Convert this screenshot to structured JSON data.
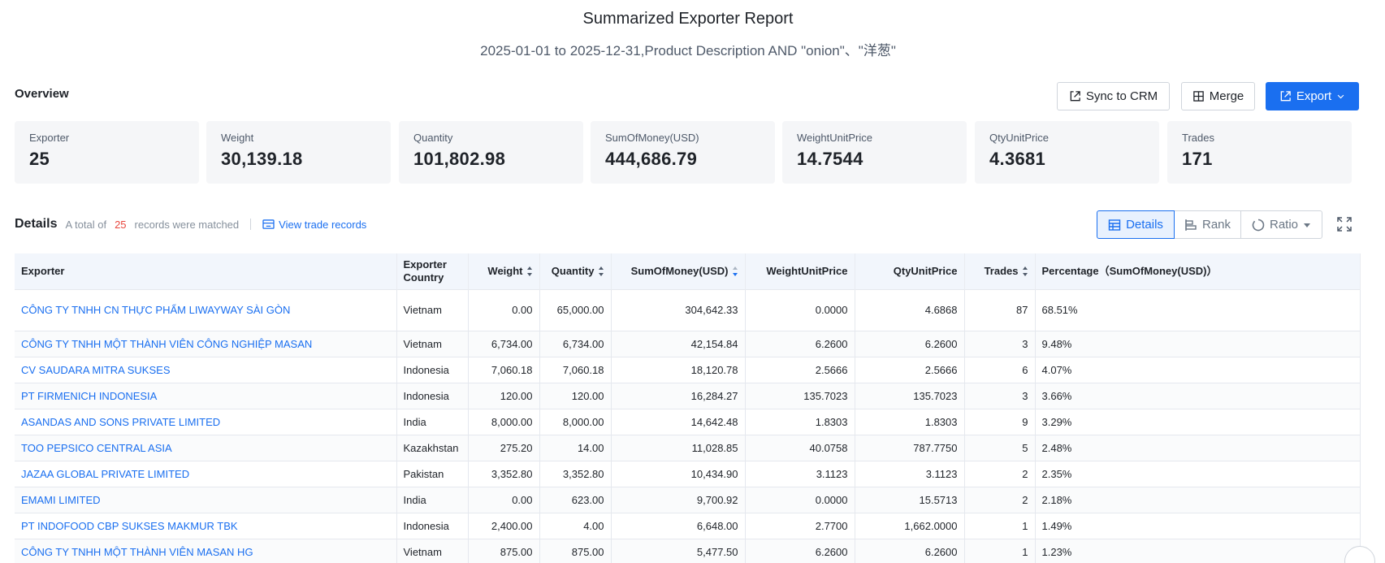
{
  "report": {
    "title": "Summarized Exporter Report",
    "subtitle": "2025-01-01 to 2025-12-31,Product Description AND \"onion\"、\"洋葱\""
  },
  "overview": {
    "label": "Overview",
    "buttons": {
      "sync": "Sync to CRM",
      "merge": "Merge",
      "export": "Export"
    },
    "stats": [
      {
        "label": "Exporter",
        "value": "25"
      },
      {
        "label": "Weight",
        "value": "30,139.18"
      },
      {
        "label": "Quantity",
        "value": "101,802.98"
      },
      {
        "label": "SumOfMoney(USD)",
        "value": "444,686.79"
      },
      {
        "label": "WeightUnitPrice",
        "value": "14.7544"
      },
      {
        "label": "QtyUnitPrice",
        "value": "4.3681"
      },
      {
        "label": "Trades",
        "value": "171"
      }
    ]
  },
  "details": {
    "title": "Details",
    "count_prefix": "A total of",
    "count": "25",
    "count_suffix": "records were matched",
    "view_link": "View trade records",
    "views": {
      "details": "Details",
      "rank": "Rank",
      "ratio": "Ratio"
    }
  },
  "table": {
    "headers": {
      "exporter": "Exporter",
      "country": "Exporter Country",
      "weight": "Weight",
      "quantity": "Quantity",
      "sum": "SumOfMoney(USD)",
      "wup": "WeightUnitPrice",
      "qup": "QtyUnitPrice",
      "trades": "Trades",
      "pct": "Percentage（SumOfMoney(USD)）"
    },
    "rows": [
      {
        "exporter": "CÔNG TY TNHH CN THỰC PHẨM LIWAYWAY SÀI GÒN",
        "country": "Vietnam",
        "weight": "0.00",
        "quantity": "65,000.00",
        "sum": "304,642.33",
        "wup": "0.0000",
        "qup": "4.6868",
        "trades": "87",
        "pct": "68.51%"
      },
      {
        "exporter": "CÔNG TY TNHH MỘT THÀNH VIÊN CÔNG NGHIỆP MASAN",
        "country": "Vietnam",
        "weight": "6,734.00",
        "quantity": "6,734.00",
        "sum": "42,154.84",
        "wup": "6.2600",
        "qup": "6.2600",
        "trades": "3",
        "pct": "9.48%"
      },
      {
        "exporter": "CV SAUDARA MITRA SUKSES",
        "country": "Indonesia",
        "weight": "7,060.18",
        "quantity": "7,060.18",
        "sum": "18,120.78",
        "wup": "2.5666",
        "qup": "2.5666",
        "trades": "6",
        "pct": "4.07%"
      },
      {
        "exporter": "PT FIRMENICH INDONESIA",
        "country": "Indonesia",
        "weight": "120.00",
        "quantity": "120.00",
        "sum": "16,284.27",
        "wup": "135.7023",
        "qup": "135.7023",
        "trades": "3",
        "pct": "3.66%"
      },
      {
        "exporter": "ASANDAS AND SONS PRIVATE LIMITED",
        "country": "India",
        "weight": "8,000.00",
        "quantity": "8,000.00",
        "sum": "14,642.48",
        "wup": "1.8303",
        "qup": "1.8303",
        "trades": "9",
        "pct": "3.29%"
      },
      {
        "exporter": "TOO PEPSICO CENTRAL ASIA",
        "country": "Kazakhstan",
        "weight": "275.20",
        "quantity": "14.00",
        "sum": "11,028.85",
        "wup": "40.0758",
        "qup": "787.7750",
        "trades": "5",
        "pct": "2.48%"
      },
      {
        "exporter": "JAZAA GLOBAL PRIVATE LIMITED",
        "country": "Pakistan",
        "weight": "3,352.80",
        "quantity": "3,352.80",
        "sum": "10,434.90",
        "wup": "3.1123",
        "qup": "3.1123",
        "trades": "2",
        "pct": "2.35%"
      },
      {
        "exporter": "EMAMI LIMITED",
        "country": "India",
        "weight": "0.00",
        "quantity": "623.00",
        "sum": "9,700.92",
        "wup": "0.0000",
        "qup": "15.5713",
        "trades": "2",
        "pct": "2.18%"
      },
      {
        "exporter": "PT INDOFOOD CBP SUKSES MAKMUR TBK",
        "country": "Indonesia",
        "weight": "2,400.00",
        "quantity": "4.00",
        "sum": "6,648.00",
        "wup": "2.7700",
        "qup": "1,662.0000",
        "trades": "1",
        "pct": "1.49%"
      },
      {
        "exporter": "CÔNG TY TNHH MỘT THÀNH VIÊN MASAN HG",
        "country": "Vietnam",
        "weight": "875.00",
        "quantity": "875.00",
        "sum": "5,477.50",
        "wup": "6.2600",
        "qup": "6.2600",
        "trades": "1",
        "pct": "1.23%"
      }
    ]
  },
  "colors": {
    "accent": "#1a6ff0",
    "count_red": "#e8473e",
    "card_bg": "#f5f6f8",
    "header_bg": "#f2f6fc"
  },
  "icons": [
    "sync-crm-icon",
    "merge-icon",
    "export-icon",
    "chevron-down-icon",
    "view-records-icon",
    "details-table-icon",
    "rank-icon",
    "ratio-icon",
    "caret-down-icon",
    "fullscreen-icon",
    "sort-icon",
    "help-icon"
  ]
}
